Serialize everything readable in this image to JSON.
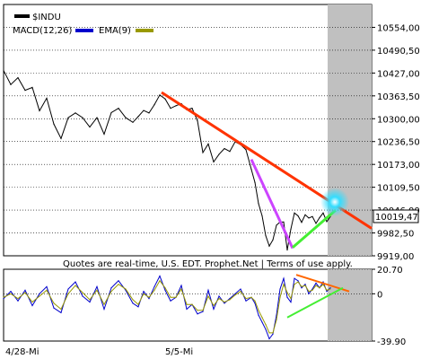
{
  "chart_data": [
    {
      "type": "line",
      "panel": "price",
      "ylim": [
        9919.0,
        10617.5
      ],
      "y_ticks": [
        "10554,00",
        "10490,50",
        "10427,00",
        "10363,50",
        "10300,00",
        "10236,50",
        "10173,00",
        "10109,50",
        "10046,00",
        "9982,50",
        "9919,00"
      ],
      "last_value_label": "10019,47",
      "legend": [
        {
          "name": "$INDU",
          "color": "#000000"
        }
      ],
      "series": [
        {
          "name": "$INDU",
          "color": "#000000",
          "x": [
            0,
            8,
            16,
            24,
            32,
            40,
            48,
            56,
            64,
            72,
            80,
            88,
            96,
            104,
            112,
            120,
            128,
            136,
            144,
            150,
            156,
            162,
            168,
            174,
            180,
            186,
            192,
            198,
            204,
            210,
            216,
            222,
            228,
            234,
            240,
            246,
            252,
            258,
            264,
            270,
            276,
            280,
            284,
            288,
            292,
            296,
            300,
            304,
            308,
            312,
            316,
            320,
            324,
            328,
            332,
            336,
            340,
            344,
            348,
            352,
            356,
            360,
            364
          ],
          "values": [
            10434,
            10395,
            10414,
            10379,
            10387,
            10322,
            10357,
            10285,
            10245,
            10303,
            10316,
            10303,
            10277,
            10303,
            10257,
            10317,
            10329,
            10303,
            10290,
            10306,
            10323,
            10316,
            10339,
            10366,
            10355,
            10329,
            10336,
            10342,
            10325,
            10329,
            10294,
            10206,
            10230,
            10180,
            10201,
            10217,
            10209,
            10236,
            10228,
            10214,
            10159,
            10123,
            10064,
            10030,
            9975,
            9946,
            9963,
            10004,
            10013,
            10013,
            9935,
            9993,
            10038,
            10030,
            10012,
            10033,
            10024,
            10028,
            10009,
            10025,
            10038,
            10014,
            10028
          ]
        }
      ],
      "trendlines": [
        {
          "name": "red",
          "color": "#ff3300",
          "points": [
            [
              176,
              10373
            ],
            [
              410,
              9995
            ]
          ]
        },
        {
          "name": "magenta",
          "color": "#cc44ff",
          "points": [
            [
              276,
              10187
            ],
            [
              322,
              9940
            ]
          ]
        },
        {
          "name": "green",
          "color": "#44ee33",
          "points": [
            [
              322,
              9942
            ],
            [
              370,
              10046
            ]
          ]
        }
      ]
    },
    {
      "type": "line",
      "panel": "macd",
      "ylim": [
        -39.9,
        20.7
      ],
      "y_ticks": [
        "20.70",
        "0",
        "-39.90"
      ],
      "legend": [
        {
          "name": "MACD(12,26)",
          "color": "#0000cc"
        },
        {
          "name": "EMA(9)",
          "color": "#999900"
        }
      ],
      "x_tick_labels": [
        "4/28-Mi",
        "5/5-Mi"
      ],
      "series": [
        {
          "name": "MACD(12,26)",
          "color": "#0000cc",
          "x": [
            0,
            8,
            16,
            24,
            32,
            40,
            48,
            56,
            64,
            72,
            80,
            88,
            96,
            104,
            112,
            120,
            128,
            136,
            144,
            150,
            156,
            162,
            168,
            174,
            180,
            186,
            192,
            198,
            204,
            210,
            216,
            222,
            228,
            234,
            240,
            246,
            252,
            258,
            264,
            270,
            276,
            280,
            284,
            288,
            292,
            296,
            300,
            304,
            308,
            312,
            316,
            320,
            324,
            328,
            332,
            336,
            340,
            344,
            348,
            352,
            356,
            360,
            364
          ],
          "values": [
            -4,
            2,
            -6,
            3,
            -10,
            0,
            6,
            -12,
            -16,
            4,
            10,
            -2,
            -7,
            6,
            -13,
            5,
            11,
            3,
            -8,
            -11,
            2,
            -4,
            6,
            15,
            3,
            -6,
            -3,
            7,
            -13,
            -9,
            -17,
            -15,
            3,
            -13,
            -2,
            -8,
            -4,
            0,
            4,
            -6,
            -3,
            -8,
            -18,
            -24,
            -30,
            -38,
            -34,
            -18,
            4,
            13,
            -3,
            -7,
            13,
            11,
            5,
            8,
            0,
            4,
            9,
            5,
            10,
            2,
            5
          ]
        },
        {
          "name": "EMA(9)",
          "color": "#999900",
          "x": [
            0,
            8,
            16,
            24,
            32,
            40,
            48,
            56,
            64,
            72,
            80,
            88,
            96,
            104,
            112,
            120,
            128,
            136,
            144,
            150,
            156,
            162,
            168,
            174,
            180,
            186,
            192,
            198,
            204,
            210,
            216,
            222,
            228,
            234,
            240,
            246,
            252,
            258,
            264,
            270,
            276,
            280,
            284,
            288,
            292,
            296,
            300,
            304,
            308,
            312,
            316,
            320,
            324,
            328,
            332,
            336,
            340,
            344,
            348,
            352,
            356,
            360,
            364
          ],
          "values": [
            -3,
            0,
            -4,
            1,
            -7,
            -2,
            3,
            -8,
            -13,
            0,
            7,
            1,
            -5,
            3,
            -9,
            2,
            8,
            4,
            -5,
            -9,
            0,
            -3,
            3,
            11,
            5,
            -3,
            -3,
            4,
            -9,
            -9,
            -14,
            -14,
            -2,
            -10,
            -4,
            -7,
            -5,
            -1,
            2,
            -4,
            -3,
            -6,
            -14,
            -20,
            -26,
            -33,
            -33,
            -22,
            -3,
            8,
            1,
            -4,
            8,
            10,
            6,
            7,
            2,
            3,
            7,
            5,
            8,
            3,
            4
          ]
        }
      ],
      "trendlines": [
        {
          "name": "orange",
          "color": "#ff6600",
          "points": [
            [
              326,
              16
            ],
            [
              385,
              2
            ]
          ]
        },
        {
          "name": "green",
          "color": "#44ee33",
          "points": [
            [
              316,
              -20
            ],
            [
              378,
              5
            ]
          ]
        }
      ]
    }
  ],
  "header": {
    "symbol": "$INDU",
    "macd_label": "MACD(12,26)",
    "ema_label": "EMA(9)"
  },
  "status_bar": {
    "text": "Quotes are real-time, U.S. EDT. Prophet.Net | Terms of use apply."
  },
  "colors": {
    "highlight_glow": "#33ddff",
    "future_area": "#c0c0c0",
    "grid": "#000000"
  }
}
